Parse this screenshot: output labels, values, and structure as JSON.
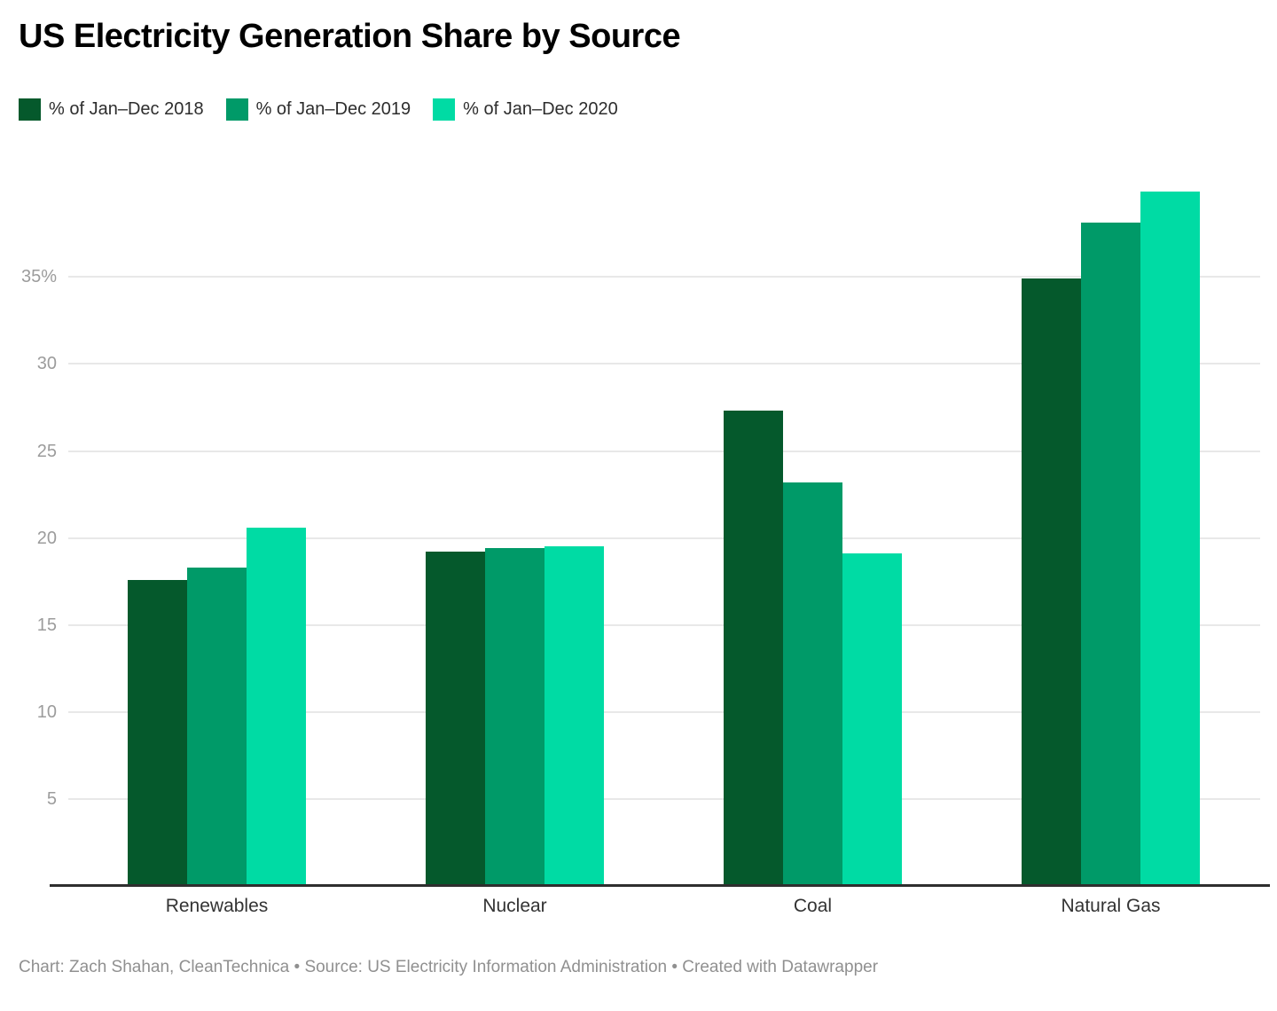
{
  "title": "US Electricity Generation Share by Source",
  "footer": {
    "text": "Chart: Zach Shahan, CleanTechnica • Source: US Electricity Information Administration • Created with Datawrapper"
  },
  "chart_data": {
    "type": "bar",
    "title": "US Electricity Generation Share by Source",
    "categories": [
      "Renewables",
      "Nuclear",
      "Coal",
      "Natural Gas"
    ],
    "series": [
      {
        "name": "% of Jan–Dec 2018",
        "color": "#05592c",
        "values": [
          17.6,
          19.2,
          27.3,
          34.9
        ]
      },
      {
        "name": "% of Jan–Dec 2019",
        "color": "#009a68",
        "values": [
          18.3,
          19.4,
          23.2,
          38.1
        ]
      },
      {
        "name": "% of Jan–Dec 2020",
        "color": "#00dba4",
        "values": [
          20.6,
          19.5,
          19.1,
          39.9
        ]
      }
    ],
    "value_unit": "%",
    "yticks": [
      5,
      10,
      15,
      20,
      25,
      30,
      35
    ],
    "ytick_labels": [
      "5",
      "10",
      "15",
      "20",
      "25",
      "30",
      "35%"
    ],
    "ylim": [
      0,
      40
    ],
    "grid": "horizontal",
    "grid_color": "#e8e8e8",
    "axis_line_color": "#2e2e2e",
    "legend_position": "top-left"
  }
}
